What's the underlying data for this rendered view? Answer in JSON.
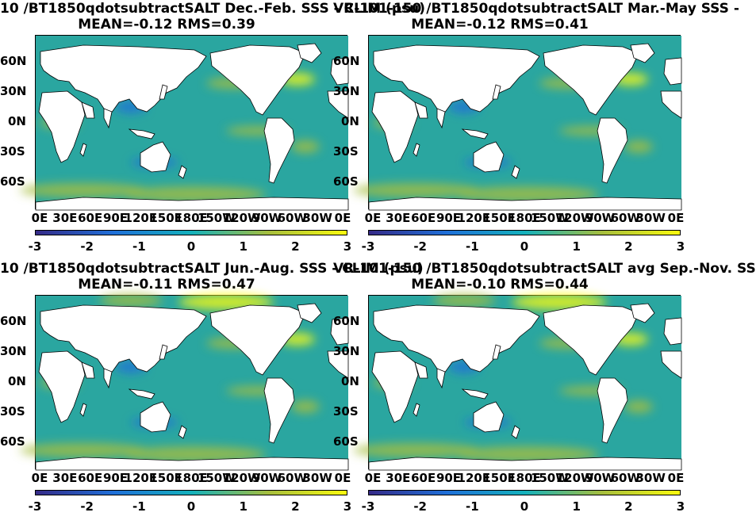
{
  "panels": [
    {
      "title_line1": "10 /BT1850qdotsubtractSALT  Dec.-Feb. SSS - CLIM (psu)",
      "title_line2": "MEAN=-0.12   RMS=0.39"
    },
    {
      "title_line1": "VR-101-150 /BT1850qdotsubtractSALT Mar.-May SSS -",
      "title_line2": "MEAN=-0.12   RMS=0.41"
    },
    {
      "title_line1": "10 /BT1850qdotsubtractSALT  Jun.-Aug. SSS - CLIM (psu)",
      "title_line2": "MEAN=-0.11   RMS=0.47"
    },
    {
      "title_line1": "VR-101-150 /BT1850qdotsubtractSALT avg Sep.-Nov. SS",
      "title_line2": "MEAN=-0.10   RMS=0.44"
    }
  ],
  "lat_labels": [
    "60N",
    "30N",
    "0N",
    "30S",
    "60S"
  ],
  "lon_labels": [
    "0E",
    "30E",
    "60E",
    "90E",
    "120E",
    "150E",
    "180E",
    "150W",
    "120W",
    "90W",
    "60W",
    "30W",
    "0E"
  ],
  "colorbar_ticks": [
    "-3",
    "-2",
    "-1",
    "0",
    "1",
    "2",
    "3"
  ],
  "colors": {
    "cb_min": "#352a87",
    "cb_low": "#1f6fd8",
    "cb_mid": "#14b1bc",
    "cb_high": "#a6be3d",
    "cb_max": "#f9fb0e",
    "ocean": "#2aa6a0",
    "land": "#ffffff"
  }
}
